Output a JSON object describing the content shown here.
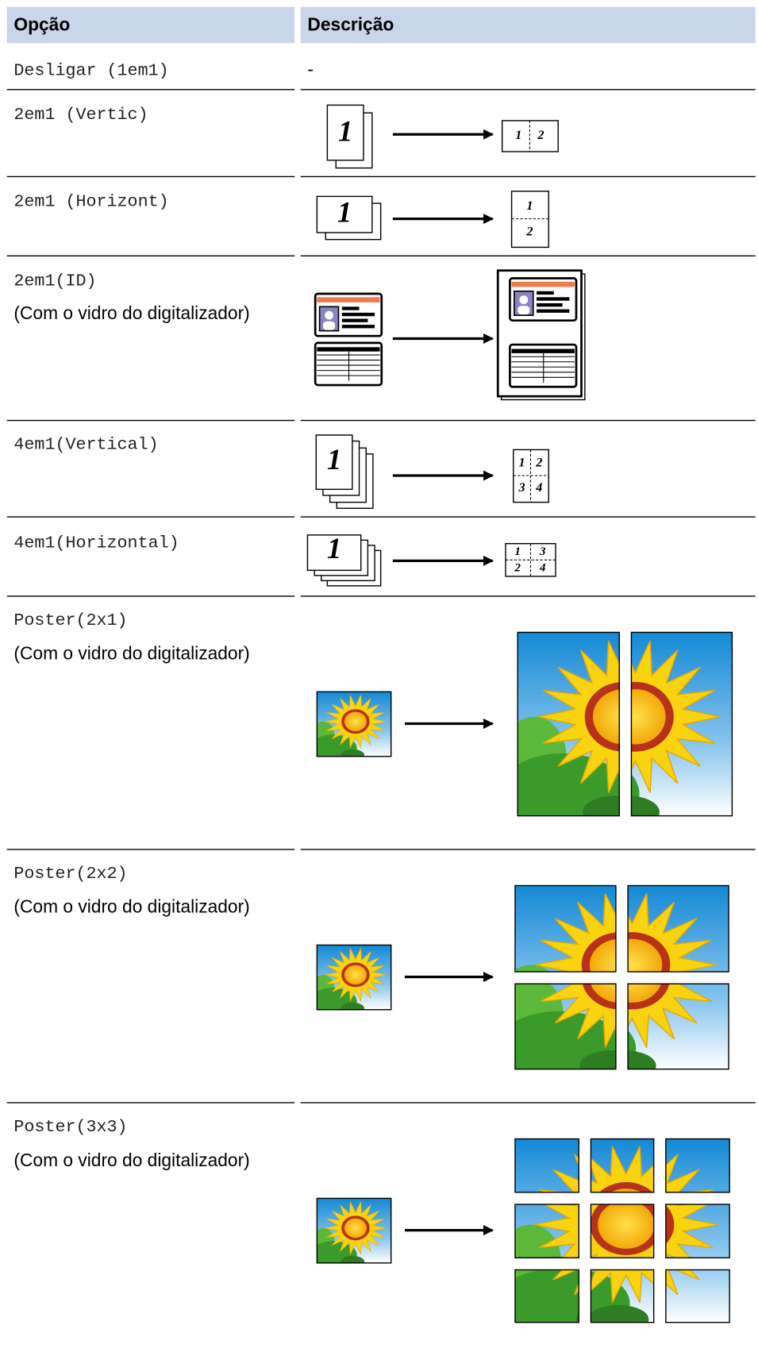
{
  "header": {
    "option": "Opção",
    "description": "Descrição"
  },
  "rows": [
    {
      "option": "Desligar (1em1)",
      "description": "-"
    },
    {
      "option": "2em1 (Vertic)",
      "source": "1",
      "result": [
        "1",
        "2"
      ]
    },
    {
      "option": "2em1 (Horizont)",
      "source": "1",
      "result": [
        "1",
        "2"
      ]
    },
    {
      "option": "2em1(ID)",
      "note": "(Com o vidro do digitalizador)"
    },
    {
      "option": "4em1(Vertical)",
      "source": "1",
      "result": [
        "1",
        "2",
        "3",
        "4"
      ]
    },
    {
      "option": "4em1(Horizontal)",
      "source": "1",
      "result": [
        "1",
        "3",
        "2",
        "4"
      ]
    },
    {
      "option": "Poster(2x1)",
      "note": "(Com o vidro do digitalizador)"
    },
    {
      "option": "Poster(2x2)",
      "note": "(Com o vidro do digitalizador)"
    },
    {
      "option": "Poster(3x3)",
      "note": "(Com o vidro do digitalizador)"
    }
  ]
}
